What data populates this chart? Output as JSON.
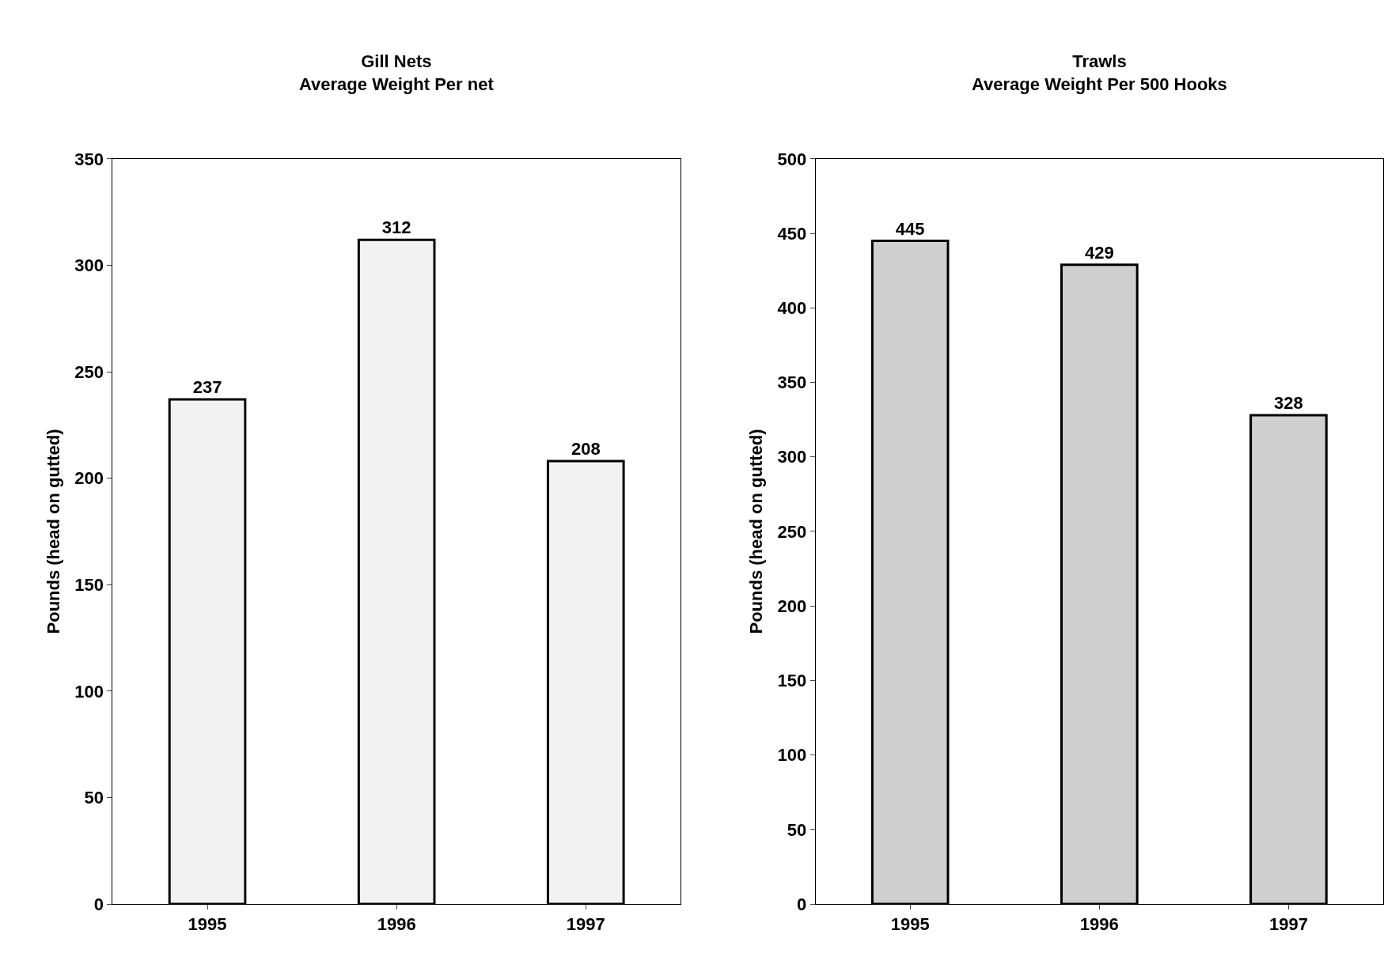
{
  "chart_data": [
    {
      "type": "bar",
      "title": "Gill Nets\nAverage Weight Per net",
      "ylabel": "Pounds (head on gutted)",
      "categories": [
        "1995",
        "1996",
        "1997"
      ],
      "values": [
        237,
        312,
        208
      ],
      "color": "#f2f2f2",
      "ylim": [
        0,
        350
      ],
      "yticks": [
        0,
        50,
        100,
        150,
        200,
        250,
        300,
        350
      ],
      "data_labels": true,
      "grid": false
    },
    {
      "type": "bar",
      "title": "Trawls\nAverage Weight Per 500 Hooks",
      "ylabel": "Pounds (head on gutted)",
      "categories": [
        "1995",
        "1996",
        "1997"
      ],
      "values": [
        445,
        429,
        328
      ],
      "color": "#cfcfcf",
      "ylim": [
        0,
        500
      ],
      "yticks": [
        0,
        50,
        100,
        150,
        200,
        250,
        300,
        350,
        400,
        450,
        500
      ],
      "data_labels": true,
      "grid": false
    }
  ]
}
